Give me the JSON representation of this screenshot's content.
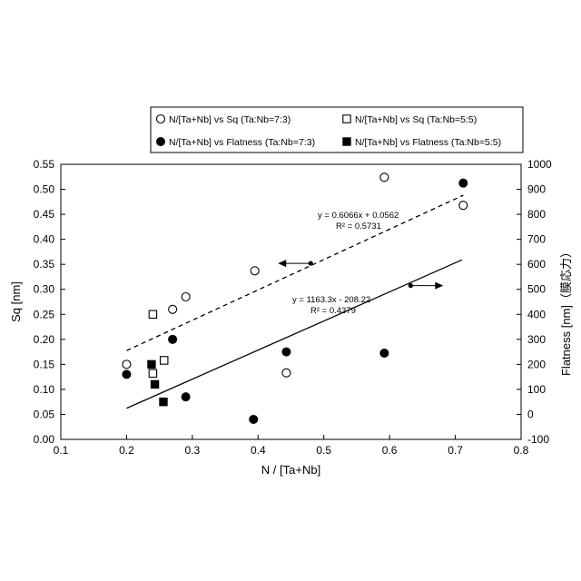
{
  "chart_data": {
    "type": "scatter",
    "xlabel": "N / [Ta+Nb]",
    "ylabel_left": "Sq [nm]",
    "ylabel_right": "Flatness [nm]（膜応力）",
    "xlim": [
      0.1,
      0.8
    ],
    "xticks": [
      0.1,
      0.2,
      0.3,
      0.4,
      0.5,
      0.6,
      0.7,
      0.8
    ],
    "xtick_labels": [
      "0.1",
      "0.2",
      "0.3",
      "0.4",
      "0.5",
      "0.6",
      "0.7",
      "0.8"
    ],
    "ylim_left": [
      0.0,
      0.55
    ],
    "yticks_left": [
      0.0,
      0.05,
      0.1,
      0.15,
      0.2,
      0.25,
      0.3,
      0.35,
      0.4,
      0.45,
      0.5,
      0.55
    ],
    "ytick_labels_left": [
      "0.00",
      "0.05",
      "0.10",
      "0.15",
      "0.20",
      "0.25",
      "0.30",
      "0.35",
      "0.40",
      "0.45",
      "0.50",
      "0.55"
    ],
    "ylim_right": [
      -100,
      1000
    ],
    "yticks_right": [
      -100,
      0,
      100,
      200,
      300,
      400,
      500,
      600,
      700,
      800,
      900,
      1000
    ],
    "ytick_labels_right": [
      "-100",
      "0",
      "100",
      "200",
      "300",
      "400",
      "500",
      "600",
      "700",
      "800",
      "900",
      "1000"
    ],
    "grid": false,
    "legend_position": "top",
    "series": [
      {
        "name": "N/[Ta+Nb] vs Sq (Ta:Nb=7:3)",
        "marker": "open-circle",
        "axis": "left",
        "x": [
          0.2,
          0.27,
          0.29,
          0.395,
          0.443,
          0.592,
          0.712
        ],
        "y": [
          0.15,
          0.26,
          0.285,
          0.337,
          0.133,
          0.524,
          0.468
        ]
      },
      {
        "name": "N/[Ta+Nb] vs Sq (Ta:Nb=5:5)",
        "marker": "open-square",
        "axis": "left",
        "x": [
          0.24,
          0.24,
          0.257
        ],
        "y": [
          0.25,
          0.132,
          0.158
        ]
      },
      {
        "name": "N/[Ta+Nb] vs Flatness (Ta:Nb=7:3)",
        "marker": "filled-circle",
        "axis": "right",
        "x": [
          0.2,
          0.27,
          0.29,
          0.393,
          0.443,
          0.592,
          0.712
        ],
        "y": [
          160,
          300,
          70,
          -20,
          250,
          245,
          925
        ]
      },
      {
        "name": "N/[Ta+Nb] vs Flatness (Ta:Nb=5:5)",
        "marker": "filled-square",
        "axis": "right",
        "x": [
          0.238,
          0.243,
          0.256
        ],
        "y": [
          200,
          120,
          50
        ]
      }
    ],
    "trendlines": [
      {
        "axis": "left",
        "style": "dashed",
        "slope": 0.6066,
        "intercept": 0.0562,
        "x_range": [
          0.2,
          0.712
        ],
        "equation": "y = 0.6066x + 0.0562",
        "r2": "R² = 0.5731"
      },
      {
        "axis": "right",
        "style": "solid",
        "slope": 1163.3,
        "intercept": -208.22,
        "x_range": [
          0.2,
          0.71
        ],
        "equation": "y = 1163.3x - 208.22",
        "r2": "R² = 0.4379"
      }
    ],
    "axis_arrows": [
      {
        "from_x": 0.48,
        "from_y_left": 0.352,
        "direction": "left",
        "points_to": "left axis"
      },
      {
        "from_x": 0.632,
        "from_y_right": 515,
        "direction": "right",
        "points_to": "right axis"
      }
    ]
  }
}
